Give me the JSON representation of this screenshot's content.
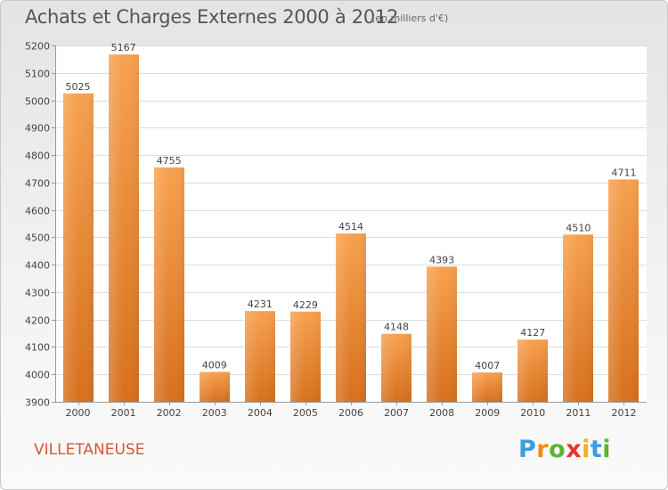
{
  "header": {
    "title": "Achats et Charges Externes 2000 à 2012",
    "subtitle": "(en milliers d'€)"
  },
  "footer": {
    "place": "VILLETANEUSE",
    "logo_letters": [
      "P",
      "r",
      "o",
      "x",
      "i",
      "t",
      "i"
    ],
    "logo_colors": [
      "#3a9de0",
      "#f08a1c",
      "#5cb531",
      "#e8362d",
      "#f0b21c",
      "#3a9de0",
      "#5cb531"
    ]
  },
  "chart_data": {
    "type": "bar",
    "title": "Achats et Charges Externes 2000 à 2012",
    "subtitle": "(en milliers d'€)",
    "categories": [
      "2000",
      "2001",
      "2002",
      "2003",
      "2004",
      "2005",
      "2006",
      "2007",
      "2008",
      "2009",
      "2010",
      "2011",
      "2012"
    ],
    "values": [
      5025,
      5167,
      4755,
      4009,
      4231,
      4229,
      4514,
      4148,
      4393,
      4007,
      4127,
      4510,
      4711
    ],
    "ylim": [
      3900,
      5200
    ],
    "yticks": [
      3900,
      4000,
      4100,
      4200,
      4300,
      4400,
      4500,
      4600,
      4700,
      4800,
      4900,
      5000,
      5100,
      5200
    ],
    "grid": true,
    "bar_color": "#f0923a",
    "xlabel": "",
    "ylabel": ""
  }
}
